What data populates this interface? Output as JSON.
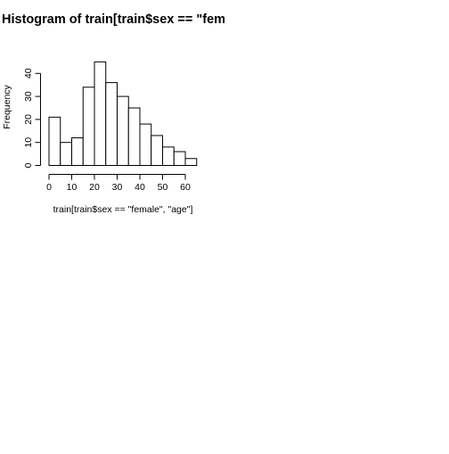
{
  "chart_data": {
    "type": "bar",
    "title": "Histogram of train[train$sex == \"female\", \"age\"]",
    "xlabel": "train[train$sex == \"female\", \"age\"]",
    "ylabel": "Frequency",
    "bin_edges": [
      0,
      5,
      10,
      15,
      20,
      25,
      30,
      35,
      40,
      45,
      50,
      55,
      60,
      65
    ],
    "values": [
      21,
      10,
      12,
      34,
      45,
      36,
      30,
      25,
      18,
      13,
      8,
      6,
      3
    ],
    "xlim": [
      0,
      65
    ],
    "ylim": [
      0,
      45
    ],
    "x_ticks": [
      0,
      10,
      20,
      30,
      40,
      50,
      60
    ],
    "y_ticks": [
      0,
      10,
      20,
      30,
      40
    ],
    "grid": false
  }
}
